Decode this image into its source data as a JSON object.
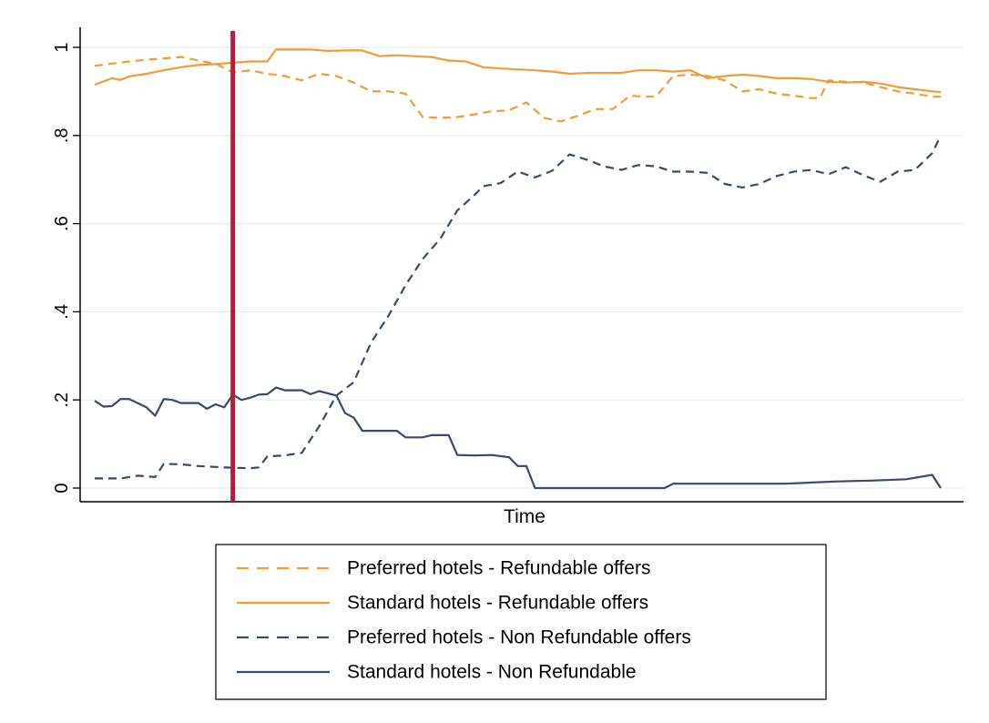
{
  "chart_data": {
    "type": "line",
    "title": "",
    "xlabel": "Time",
    "ylabel": "",
    "x_range": [
      0,
      100
    ],
    "ylim": [
      0,
      1
    ],
    "yticks": [
      0,
      0.2,
      0.4,
      0.6,
      0.8,
      1
    ],
    "ytick_labels": [
      "0",
      ".2",
      ".4",
      ".6",
      ".8",
      "1"
    ],
    "grid": true,
    "legend_position": "bottom",
    "vertical_marker": {
      "x": 16,
      "color": "#c0163c"
    },
    "colors": {
      "orange": "#f29c38",
      "navy": "#3a4a6b",
      "grid": "#e8edf1"
    },
    "series": [
      {
        "name": "Preferred hotels - Refundable offers",
        "color": "#f29c38",
        "dash": true,
        "points": [
          [
            0,
            0.958
          ],
          [
            2,
            0.963
          ],
          [
            4,
            0.968
          ],
          [
            6,
            0.972
          ],
          [
            8,
            0.975
          ],
          [
            10,
            0.978
          ],
          [
            12,
            0.97
          ],
          [
            14,
            0.963
          ],
          [
            16,
            0.943
          ],
          [
            18,
            0.948
          ],
          [
            20,
            0.94
          ],
          [
            22,
            0.935
          ],
          [
            24,
            0.925
          ],
          [
            26,
            0.94
          ],
          [
            28,
            0.935
          ],
          [
            30,
            0.92
          ],
          [
            32,
            0.9
          ],
          [
            34,
            0.9
          ],
          [
            36,
            0.895
          ],
          [
            38,
            0.842
          ],
          [
            40,
            0.84
          ],
          [
            42,
            0.842
          ],
          [
            44,
            0.848
          ],
          [
            46,
            0.855
          ],
          [
            48,
            0.857
          ],
          [
            50,
            0.875
          ],
          [
            52,
            0.84
          ],
          [
            54,
            0.832
          ],
          [
            56,
            0.845
          ],
          [
            58,
            0.86
          ],
          [
            60,
            0.86
          ],
          [
            62,
            0.89
          ],
          [
            64,
            0.888
          ],
          [
            65,
            0.888
          ],
          [
            67,
            0.935
          ],
          [
            69,
            0.938
          ],
          [
            71,
            0.935
          ],
          [
            73,
            0.925
          ],
          [
            75,
            0.9
          ],
          [
            77,
            0.905
          ],
          [
            79,
            0.895
          ],
          [
            81,
            0.89
          ],
          [
            83,
            0.885
          ],
          [
            84,
            0.885
          ],
          [
            85,
            0.925
          ],
          [
            87,
            0.922
          ],
          [
            89,
            0.92
          ],
          [
            91,
            0.91
          ],
          [
            93,
            0.9
          ],
          [
            95,
            0.895
          ],
          [
            97,
            0.888
          ],
          [
            98,
            0.888
          ]
        ]
      },
      {
        "name": "Standard hotels - Refundable offers",
        "color": "#f29c38",
        "dash": false,
        "points": [
          [
            0,
            0.915
          ],
          [
            2,
            0.93
          ],
          [
            3,
            0.926
          ],
          [
            4,
            0.934
          ],
          [
            6,
            0.94
          ],
          [
            8,
            0.948
          ],
          [
            10,
            0.955
          ],
          [
            12,
            0.96
          ],
          [
            14,
            0.962
          ],
          [
            16,
            0.965
          ],
          [
            18,
            0.968
          ],
          [
            20,
            0.968
          ],
          [
            21,
            0.995
          ],
          [
            23,
            0.995
          ],
          [
            25,
            0.995
          ],
          [
            27,
            0.992
          ],
          [
            29,
            0.993
          ],
          [
            31,
            0.993
          ],
          [
            33,
            0.98
          ],
          [
            35,
            0.982
          ],
          [
            37,
            0.98
          ],
          [
            39,
            0.978
          ],
          [
            41,
            0.97
          ],
          [
            43,
            0.968
          ],
          [
            45,
            0.955
          ],
          [
            47,
            0.952
          ],
          [
            49,
            0.95
          ],
          [
            51,
            0.948
          ],
          [
            53,
            0.945
          ],
          [
            55,
            0.94
          ],
          [
            57,
            0.942
          ],
          [
            59,
            0.942
          ],
          [
            61,
            0.942
          ],
          [
            63,
            0.948
          ],
          [
            65,
            0.948
          ],
          [
            67,
            0.945
          ],
          [
            69,
            0.948
          ],
          [
            71,
            0.93
          ],
          [
            73,
            0.935
          ],
          [
            75,
            0.938
          ],
          [
            77,
            0.935
          ],
          [
            79,
            0.93
          ],
          [
            81,
            0.93
          ],
          [
            83,
            0.928
          ],
          [
            85,
            0.922
          ],
          [
            87,
            0.92
          ],
          [
            89,
            0.922
          ],
          [
            91,
            0.918
          ],
          [
            93,
            0.91
          ],
          [
            95,
            0.905
          ],
          [
            98,
            0.898
          ]
        ]
      },
      {
        "name": "Preferred hotels - Non Refundable offers",
        "color": "#3a4a6b",
        "dash": true,
        "points": [
          [
            0,
            0.022
          ],
          [
            3,
            0.022
          ],
          [
            5,
            0.028
          ],
          [
            7,
            0.025
          ],
          [
            8,
            0.055
          ],
          [
            10,
            0.054
          ],
          [
            12,
            0.05
          ],
          [
            14,
            0.048
          ],
          [
            16,
            0.046
          ],
          [
            18,
            0.045
          ],
          [
            19,
            0.047
          ],
          [
            20,
            0.072
          ],
          [
            22,
            0.074
          ],
          [
            24,
            0.08
          ],
          [
            26,
            0.14
          ],
          [
            28,
            0.21
          ],
          [
            30,
            0.24
          ],
          [
            32,
            0.33
          ],
          [
            34,
            0.39
          ],
          [
            36,
            0.46
          ],
          [
            38,
            0.52
          ],
          [
            40,
            0.565
          ],
          [
            42,
            0.63
          ],
          [
            44,
            0.665
          ],
          [
            45,
            0.685
          ],
          [
            47,
            0.692
          ],
          [
            49,
            0.718
          ],
          [
            51,
            0.705
          ],
          [
            53,
            0.72
          ],
          [
            55,
            0.757
          ],
          [
            57,
            0.745
          ],
          [
            59,
            0.73
          ],
          [
            61,
            0.722
          ],
          [
            63,
            0.733
          ],
          [
            65,
            0.73
          ],
          [
            67,
            0.718
          ],
          [
            69,
            0.718
          ],
          [
            71,
            0.715
          ],
          [
            73,
            0.69
          ],
          [
            75,
            0.682
          ],
          [
            77,
            0.69
          ],
          [
            79,
            0.708
          ],
          [
            81,
            0.718
          ],
          [
            83,
            0.722
          ],
          [
            85,
            0.712
          ],
          [
            87,
            0.728
          ],
          [
            89,
            0.71
          ],
          [
            91,
            0.695
          ],
          [
            93,
            0.718
          ],
          [
            95,
            0.722
          ],
          [
            97,
            0.76
          ],
          [
            98,
            0.8
          ]
        ]
      },
      {
        "name": "Standard hotels - Non Refundable",
        "color": "#3a4a6b",
        "dash": false,
        "points": [
          [
            0,
            0.198
          ],
          [
            1,
            0.185
          ],
          [
            2,
            0.186
          ],
          [
            3,
            0.202
          ],
          [
            4,
            0.202
          ],
          [
            6,
            0.183
          ],
          [
            7,
            0.164
          ],
          [
            8,
            0.202
          ],
          [
            9,
            0.2
          ],
          [
            10,
            0.193
          ],
          [
            12,
            0.193
          ],
          [
            13,
            0.18
          ],
          [
            14,
            0.19
          ],
          [
            15,
            0.183
          ],
          [
            16,
            0.212
          ],
          [
            17,
            0.2
          ],
          [
            18,
            0.205
          ],
          [
            19,
            0.212
          ],
          [
            20,
            0.213
          ],
          [
            21,
            0.228
          ],
          [
            22,
            0.222
          ],
          [
            24,
            0.222
          ],
          [
            25,
            0.213
          ],
          [
            26,
            0.22
          ],
          [
            28,
            0.21
          ],
          [
            29,
            0.17
          ],
          [
            30,
            0.16
          ],
          [
            31,
            0.13
          ],
          [
            33,
            0.13
          ],
          [
            35,
            0.13
          ],
          [
            36,
            0.115
          ],
          [
            38,
            0.115
          ],
          [
            39,
            0.12
          ],
          [
            41,
            0.12
          ],
          [
            42,
            0.075
          ],
          [
            44,
            0.074
          ],
          [
            46,
            0.075
          ],
          [
            48,
            0.07
          ],
          [
            49,
            0.05
          ],
          [
            50,
            0.05
          ],
          [
            51,
            0.0
          ],
          [
            55,
            0.0
          ],
          [
            60,
            0.0
          ],
          [
            66,
            0.0
          ],
          [
            67,
            0.01
          ],
          [
            72,
            0.01
          ],
          [
            80,
            0.01
          ],
          [
            86,
            0.015
          ],
          [
            90,
            0.017
          ],
          [
            94,
            0.02
          ],
          [
            97,
            0.03
          ],
          [
            98,
            0.0
          ]
        ]
      }
    ]
  }
}
